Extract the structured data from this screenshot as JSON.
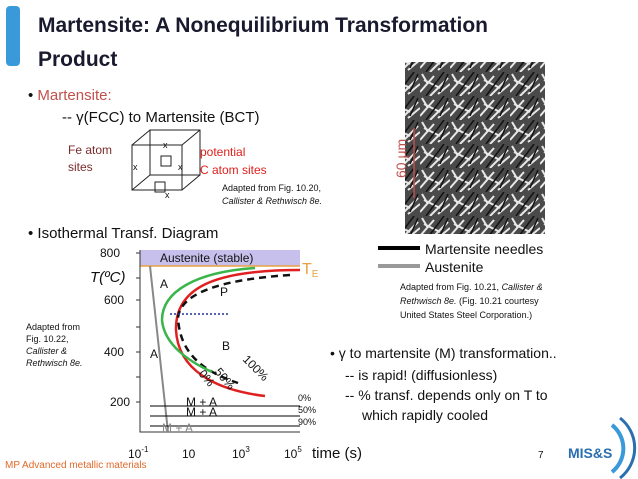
{
  "title": {
    "lines": [
      "Martensite:  A Nonequilibrium Transformation",
      "Product"
    ]
  },
  "bullet1": {
    "head": "Martensite:",
    "sub": "-- γ(FCC) to Martensite (BCT)"
  },
  "unit_cell": {
    "fe_label": [
      "Fe atom",
      "sites"
    ],
    "c_label": [
      "potential",
      "C atom sites"
    ],
    "caption": {
      "line1": "Adapted from Fig. 10.20,",
      "line2": "Callister & Rethwisch 8e."
    }
  },
  "micrograph": {
    "scale": "60 μm",
    "legend": [
      "Martensite needles",
      "Austenite"
    ],
    "caption": {
      "line1a": "Adapted from Fig. 10.21, ",
      "line1b": "Callister &",
      "line2a": "Rethwisch 8e.",
      "line2b": " (Fig. 10.21 courtesy",
      "line3": "United States Steel Corporation.)"
    }
  },
  "bullet2": "Isothermal Transf. Diagram",
  "diagram": {
    "y_ticks": [
      "800",
      "600",
      "400",
      "200"
    ],
    "y_label": "T(ºC)",
    "region": "Austenite (stable)",
    "te": {
      "base": "T",
      "sub": "E"
    },
    "labels": [
      "A",
      "P",
      "B",
      "A"
    ],
    "curves": [
      "100%",
      "50%",
      "0%"
    ],
    "m_lines": [
      "M + A",
      "M + A",
      "M + A"
    ],
    "m_pct": [
      "0%",
      "50%",
      "90%"
    ],
    "x_ticks": [
      {
        "base": "10",
        "exp": "-1"
      },
      {
        "base": "10",
        "exp": ""
      },
      {
        "base": "10",
        "exp": "3"
      },
      {
        "base": "10",
        "exp": "5"
      }
    ],
    "x_label": "time (s)",
    "caption": [
      "Adapted from",
      "Fig. 10.22,",
      "Callister &",
      "Rethwisch 8e."
    ]
  },
  "bullet3": {
    "head": "γ to martensite (M) transformation..",
    "items": [
      "-- is rapid! (diffusionless)",
      "-- % transf. depends only on T to",
      "which rapidly cooled"
    ]
  },
  "footer": {
    "course": "MP Advanced metallic materials",
    "page": "7",
    "logo": "MIS&S"
  }
}
